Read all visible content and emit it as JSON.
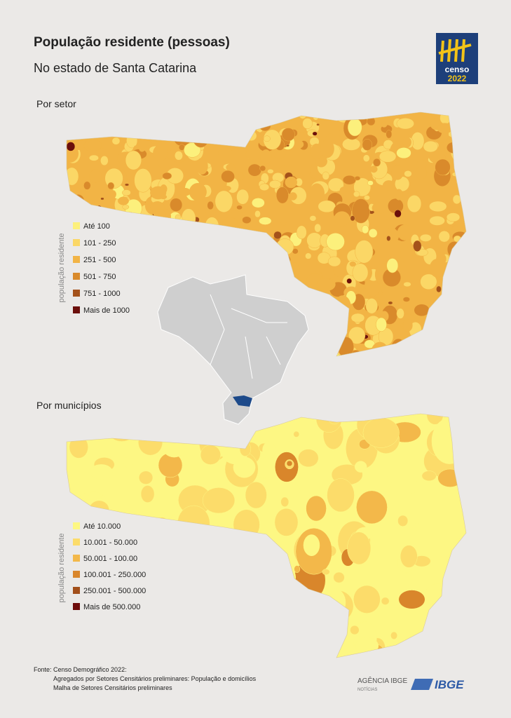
{
  "header": {
    "title": "População residente (pessoas)",
    "subtitle": "No estado de Santa Catarina"
  },
  "logo": {
    "line1": "censo",
    "line2": "2022"
  },
  "maps": [
    {
      "title": "Por setor",
      "legend_title": "população residente",
      "legend": [
        {
          "label": "Até 100",
          "color": "#fcf07c"
        },
        {
          "label": "101 - 250",
          "color": "#fbd766"
        },
        {
          "label": "251 - 500",
          "color": "#f2b445"
        },
        {
          "label": "501 - 750",
          "color": "#d98a2b"
        },
        {
          "label": "751 - 1000",
          "color": "#a4521b"
        },
        {
          "label": "Mais de 1000",
          "color": "#6b0f0b"
        }
      ]
    },
    {
      "title": "Por municípios",
      "legend_title": "população residente",
      "legend": [
        {
          "label": "Até 10.000",
          "color": "#fdf783"
        },
        {
          "label": "10.001 - 50.000",
          "color": "#fcdc6a"
        },
        {
          "label": "50.001 - 100.00",
          "color": "#f3b84a"
        },
        {
          "label": "100.001 - 250.000",
          "color": "#d9862b"
        },
        {
          "label": "250.001 - 500.000",
          "color": "#a24f1a"
        },
        {
          "label": "Mais de 500.000",
          "color": "#6e0c0b"
        }
      ]
    }
  ],
  "footer": {
    "source": "Fonte: Censo Demográfico 2022:",
    "lines": [
      "Agregados por Setores Censitários preliminares: População e domicílios",
      "Malha de Setores Censitários preliminares"
    ],
    "agencia": "AGÊNCIA IBGE",
    "noticias": "NOTÍCIAS",
    "ibge": "IBGE"
  }
}
